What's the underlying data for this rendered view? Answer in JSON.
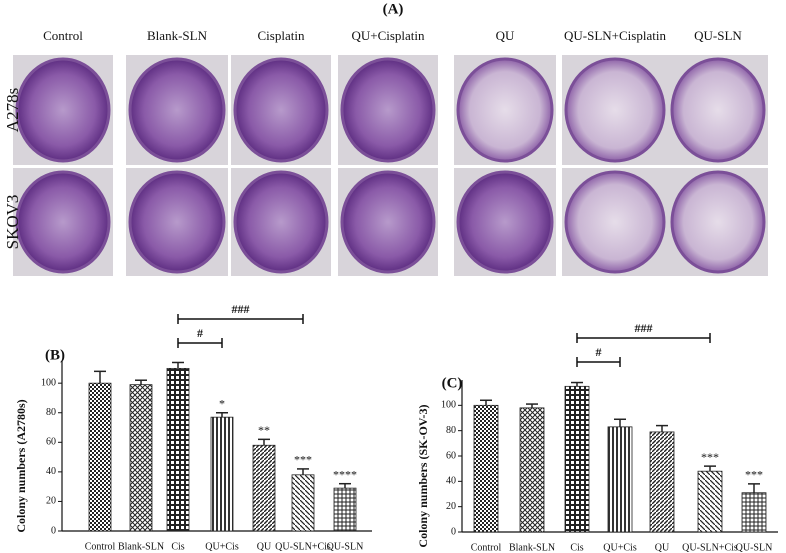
{
  "panel_a": {
    "title": "(A)",
    "columns": [
      "Control",
      "Blank-SLN",
      "Cisplatin",
      "QU+Cisplatin",
      "QU",
      "QU-SLN+Cisplatin",
      "QU-SLN"
    ],
    "rows": [
      "A278s",
      "SKOV3"
    ]
  },
  "chart_data": [
    {
      "type": "bar",
      "title": "(B)",
      "y_label": "Colony numbers (A2780s)",
      "categories": [
        "Control",
        "Blank-SLN",
        "Cis",
        "QU+Cis",
        "QU",
        "QU-SLN+Cis",
        "QU-SLN"
      ],
      "values": [
        100,
        99,
        110,
        77,
        58,
        38,
        29
      ],
      "errors": [
        8,
        3,
        4,
        3,
        4,
        4,
        3
      ],
      "annotations": [
        null,
        null,
        null,
        "*",
        "**",
        "***",
        "****"
      ],
      "brackets": [
        {
          "from": 2,
          "to": 3,
          "label": "#"
        },
        {
          "from": 2,
          "to": 5,
          "label": "###"
        }
      ],
      "ylim": [
        0,
        115
      ],
      "yticks": [
        0,
        20,
        40,
        60,
        80,
        100
      ],
      "color": "#222222"
    },
    {
      "type": "bar",
      "title": "(C)",
      "y_label": "Colony numbers (SK-OV-3)",
      "categories": [
        "Control",
        "Blank-SLN",
        "Cis",
        "QU+Cis",
        "QU",
        "QU-SLN+Cis",
        "QU-SLN"
      ],
      "values": [
        100,
        98,
        115,
        83,
        79,
        48,
        31
      ],
      "errors": [
        4,
        3,
        3,
        6,
        5,
        4,
        7
      ],
      "annotations": [
        null,
        null,
        null,
        null,
        null,
        "***",
        "***"
      ],
      "brackets": [
        {
          "from": 2,
          "to": 3,
          "label": "#"
        },
        {
          "from": 2,
          "to": 5,
          "label": "###"
        }
      ],
      "ylim": [
        0,
        120
      ],
      "yticks": [
        0,
        20,
        40,
        60,
        80,
        100
      ],
      "color": "#222222"
    }
  ]
}
